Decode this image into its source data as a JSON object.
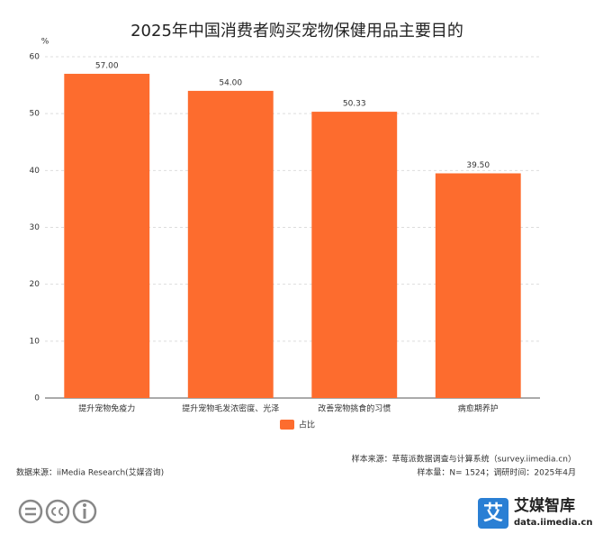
{
  "chart_data": {
    "type": "bar",
    "title": "2025年中国消费者购买宠物保健用品主要目的",
    "y_label": "%",
    "categories": [
      "提升宠物免疫力",
      "提升宠物毛发浓密度、光泽",
      "改善宠物挑食的习惯",
      "病愈期养护"
    ],
    "series": [
      {
        "name": "占比",
        "color": "#fd6c2e",
        "values": [
          57,
          54,
          50.33,
          39.5
        ],
        "value_labels": [
          "57.00",
          "54.00",
          "50.33",
          "39.50"
        ]
      }
    ],
    "ylim": [
      0,
      60
    ],
    "yticks": [
      0,
      10,
      20,
      30,
      40,
      50,
      60
    ],
    "grid": true,
    "legend": "bottom"
  },
  "footer": {
    "sample_source": "样本来源：草莓派数据调查与计算系统（survey.iimedia.cn）",
    "sample_size": "样本量：N= 1524；调研时间：2025年4月",
    "data_source": "数据来源：iiMedia Research(艾媒咨询)"
  },
  "logo": {
    "icon": "艾",
    "name": "艾媒智库",
    "url": "data.iimedia.cn"
  }
}
